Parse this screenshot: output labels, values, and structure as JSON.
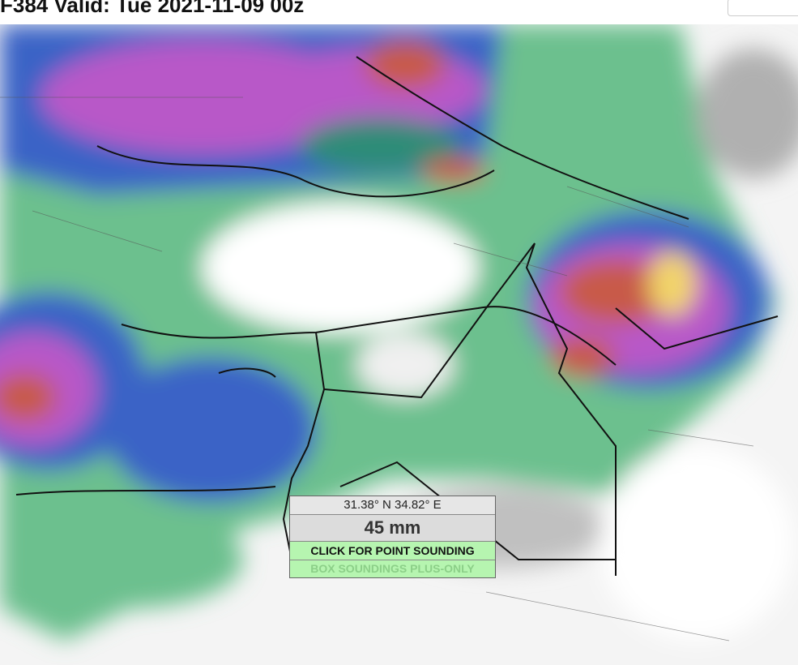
{
  "header": {
    "title": "F384 Valid: Tue 2021-11-09 00z"
  },
  "tooltip": {
    "coords": "31.38° N 34.82° E",
    "value": "45 mm",
    "action": "CLICK FOR POINT SOUNDING",
    "note": "BOX SOUNDINGS PLUS-ONLY"
  }
}
